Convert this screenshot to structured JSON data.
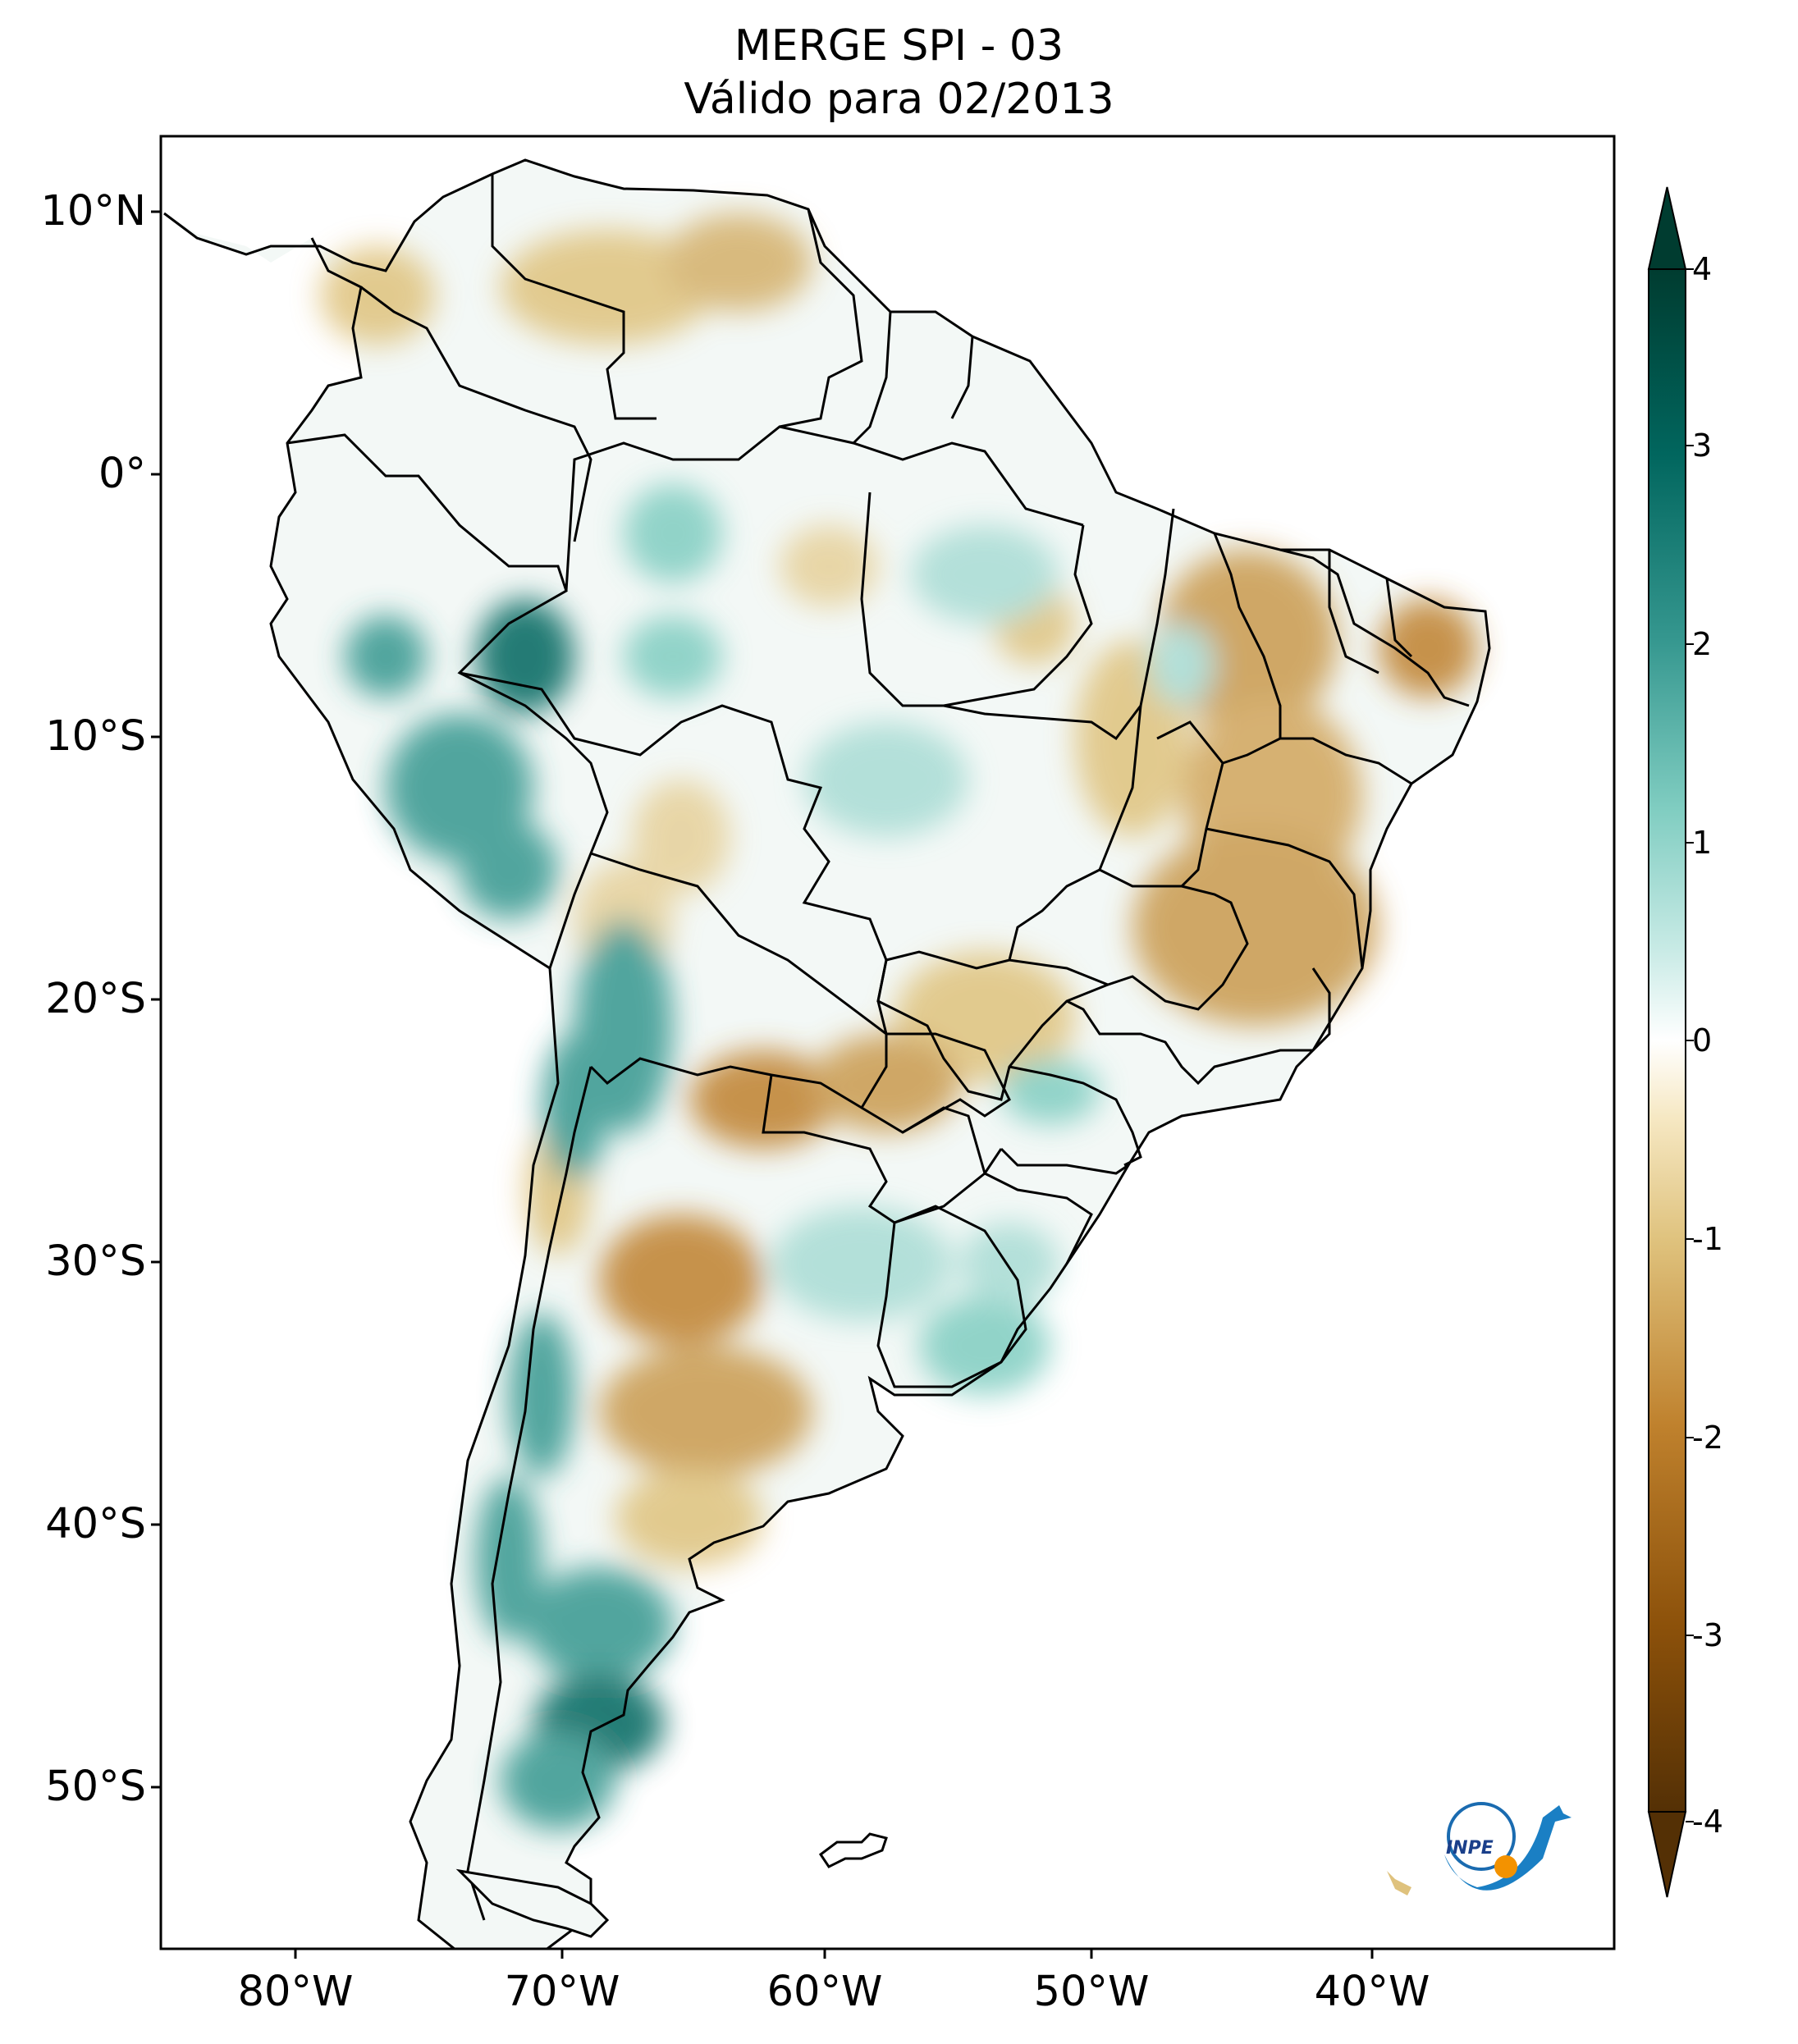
{
  "title": {
    "line1": "MERGE   SPI - 03",
    "line2": "Válido para 02/2013"
  },
  "axes": {
    "lat_ticks": [
      "10°N",
      "0°",
      "10°S",
      "20°S",
      "30°S",
      "40°S",
      "50°S"
    ],
    "lon_ticks": [
      "80°W",
      "70°W",
      "60°W",
      "50°W",
      "40°W"
    ]
  },
  "colorbar": {
    "ticks": [
      "4",
      "3",
      "2",
      "1",
      "0",
      "-1",
      "-2",
      "-3",
      "-4"
    ],
    "colors": [
      "#543005",
      "#8c510a",
      "#bf812d",
      "#dfc27d",
      "#f6e8c3",
      "#ffffff",
      "#c7eae5",
      "#80cdc1",
      "#35978f",
      "#01665e",
      "#003c30"
    ]
  },
  "logo": {
    "text": "INPE"
  }
}
